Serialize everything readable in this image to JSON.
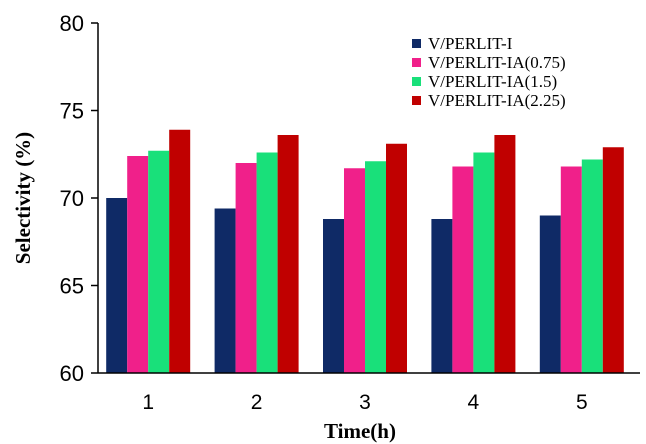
{
  "chart_data": {
    "type": "bar",
    "title": "",
    "xlabel": "Time(h)",
    "ylabel": "Selectivity (%)",
    "ylim": [
      60,
      80
    ],
    "yticks": [
      60,
      65,
      70,
      75,
      80
    ],
    "categories": [
      "1",
      "2",
      "3",
      "4",
      "5"
    ],
    "series": [
      {
        "name": "V/PERLIT-I",
        "color": "#0f2a66",
        "values": [
          70.0,
          69.4,
          68.8,
          68.8,
          69.0
        ]
      },
      {
        "name": "V/PERLIT-IA(0.75)",
        "color": "#f0208a",
        "values": [
          72.4,
          72.0,
          71.7,
          71.8,
          71.8
        ]
      },
      {
        "name": "V/PERLIT-IA(1.5)",
        "color": "#19e07a",
        "values": [
          72.7,
          72.6,
          72.1,
          72.6,
          72.2
        ]
      },
      {
        "name": "V/PERLIT-IA(2.25)",
        "color": "#c00000",
        "values": [
          73.9,
          73.6,
          73.1,
          73.6,
          72.9
        ]
      }
    ],
    "legend_position": "top-right",
    "grid": false
  }
}
